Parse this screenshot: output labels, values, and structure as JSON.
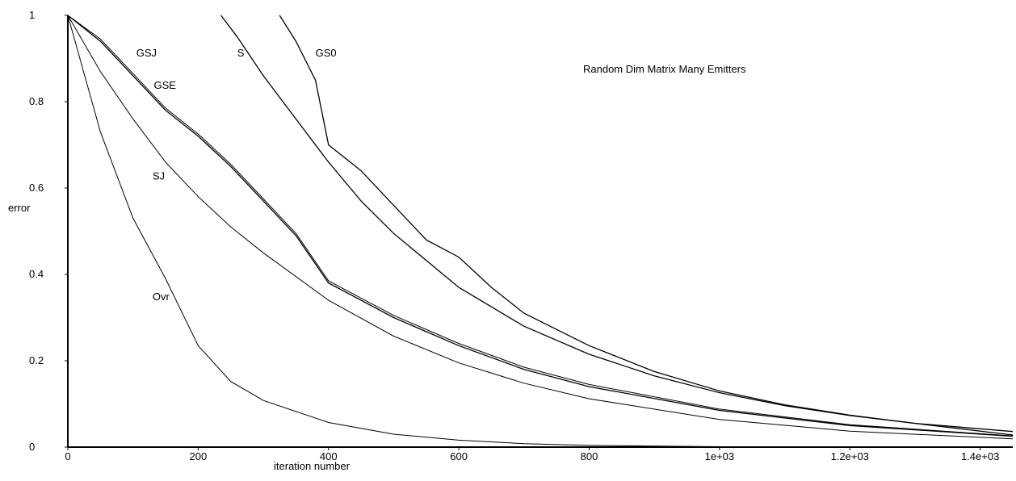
{
  "chart_data": {
    "type": "line",
    "title": "Random Dim Matrix Many Emitters",
    "xlabel": "iteration number",
    "ylabel": "error",
    "xlim": [
      0,
      1450
    ],
    "ylim": [
      0,
      1
    ],
    "x_ticks": [
      {
        "value": 0,
        "label": "0"
      },
      {
        "value": 200,
        "label": "200"
      },
      {
        "value": 400,
        "label": "400"
      },
      {
        "value": 600,
        "label": "600"
      },
      {
        "value": 800,
        "label": "800"
      },
      {
        "value": 1000,
        "label": "1e+03"
      },
      {
        "value": 1200,
        "label": "1.2e+03"
      },
      {
        "value": 1400,
        "label": "1.4e+03"
      }
    ],
    "y_ticks": [
      {
        "value": 0,
        "label": "0"
      },
      {
        "value": 0.2,
        "label": "0.2"
      },
      {
        "value": 0.4,
        "label": "0.4"
      },
      {
        "value": 0.6,
        "label": "0.6"
      },
      {
        "value": 0.8,
        "label": "0.8"
      },
      {
        "value": 1,
        "label": "1"
      }
    ],
    "grid": false,
    "series": [
      {
        "name": "Ovr",
        "label_at": [
          130,
          0.34
        ],
        "x": [
          0,
          50,
          100,
          150,
          200,
          250,
          300,
          400,
          500,
          600,
          700,
          800,
          1000,
          1200,
          1450
        ],
        "y": [
          1.0,
          0.73,
          0.53,
          0.39,
          0.235,
          0.152,
          0.108,
          0.057,
          0.03,
          0.016,
          0.008,
          0.004,
          0.001,
          0.0005,
          0.0002
        ]
      },
      {
        "name": "SJ",
        "label_at": [
          130,
          0.62
        ],
        "x": [
          0,
          50,
          100,
          150,
          200,
          250,
          300,
          400,
          500,
          600,
          700,
          800,
          1000,
          1200,
          1450
        ],
        "y": [
          1.0,
          0.87,
          0.76,
          0.66,
          0.58,
          0.51,
          0.45,
          0.34,
          0.257,
          0.195,
          0.148,
          0.112,
          0.064,
          0.037,
          0.019
        ]
      },
      {
        "name": "GSJ",
        "label_at": [
          105,
          0.905
        ],
        "x": [
          0,
          50,
          100,
          150,
          200,
          250,
          300,
          350,
          400,
          450,
          500,
          600,
          700,
          800,
          1000,
          1200,
          1450
        ],
        "y": [
          1.0,
          0.94,
          0.86,
          0.78,
          0.72,
          0.65,
          0.57,
          0.49,
          0.38,
          0.34,
          0.3,
          0.235,
          0.18,
          0.14,
          0.085,
          0.05,
          0.025
        ]
      },
      {
        "name": "GSE",
        "label_at": [
          132,
          0.83
        ],
        "x": [
          0,
          50,
          100,
          150,
          200,
          250,
          300,
          350,
          400,
          450,
          500,
          600,
          700,
          800,
          1000,
          1200,
          1450
        ],
        "y": [
          1.0,
          0.945,
          0.865,
          0.785,
          0.725,
          0.655,
          0.575,
          0.495,
          0.385,
          0.345,
          0.305,
          0.24,
          0.185,
          0.145,
          0.088,
          0.052,
          0.026
        ]
      },
      {
        "name": "S",
        "label_at": [
          260,
          0.905
        ],
        "x": [
          235,
          260,
          300,
          350,
          400,
          450,
          500,
          600,
          700,
          800,
          900,
          1000,
          1100,
          1200,
          1300,
          1450
        ],
        "y": [
          1.0,
          0.95,
          0.86,
          0.76,
          0.66,
          0.57,
          0.495,
          0.37,
          0.28,
          0.215,
          0.165,
          0.126,
          0.096,
          0.073,
          0.055,
          0.028
        ]
      },
      {
        "name": "GS0",
        "label_at": [
          380,
          0.905
        ],
        "x": [
          325,
          350,
          380,
          400,
          450,
          500,
          550,
          600,
          650,
          700,
          800,
          900,
          1000,
          1100,
          1200,
          1300,
          1450
        ],
        "y": [
          1.0,
          0.94,
          0.85,
          0.7,
          0.64,
          0.56,
          0.48,
          0.44,
          0.37,
          0.31,
          0.235,
          0.175,
          0.13,
          0.098,
          0.074,
          0.055,
          0.036
        ]
      }
    ]
  }
}
